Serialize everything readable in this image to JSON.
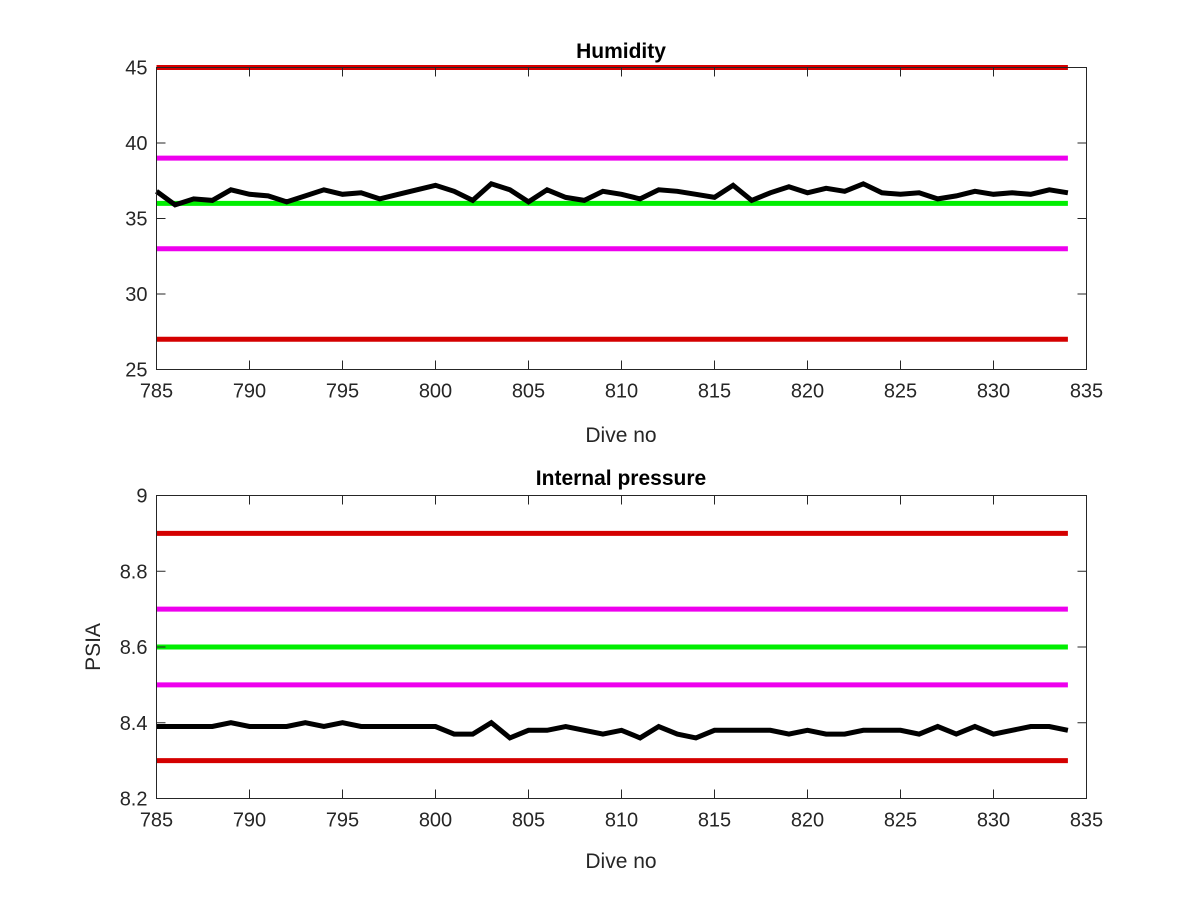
{
  "chart_data": [
    {
      "type": "line",
      "title": "Humidity",
      "xlabel": "Dive no",
      "ylabel": "",
      "xlim": [
        785,
        835
      ],
      "ylim": [
        25,
        45
      ],
      "xticks": [
        785,
        790,
        795,
        800,
        805,
        810,
        815,
        820,
        825,
        830,
        835
      ],
      "xtick_labels": [
        "785",
        "790",
        "795",
        "800",
        "805",
        "810",
        "815",
        "820",
        "825",
        "830",
        "835"
      ],
      "yticks": [
        25,
        30,
        35,
        40,
        45
      ],
      "ytick_labels": [
        "25",
        "30",
        "35",
        "40",
        "45"
      ],
      "grid": false,
      "reference_lines": [
        {
          "y": 45,
          "color": "#d40000"
        },
        {
          "y": 39,
          "color": "#ee00ee"
        },
        {
          "y": 36,
          "color": "#00ee00"
        },
        {
          "y": 33,
          "color": "#ee00ee"
        },
        {
          "y": 27,
          "color": "#d40000"
        }
      ],
      "series": [
        {
          "color": "#000000",
          "x": [
            785,
            786,
            787,
            788,
            789,
            790,
            791,
            792,
            793,
            794,
            795,
            796,
            797,
            798,
            799,
            800,
            801,
            802,
            803,
            804,
            805,
            806,
            807,
            808,
            809,
            810,
            811,
            812,
            813,
            814,
            815,
            816,
            817,
            818,
            819,
            820,
            821,
            822,
            823,
            824,
            825,
            826,
            827,
            828,
            829,
            830,
            831,
            832,
            833,
            834
          ],
          "values": [
            36.8,
            35.9,
            36.3,
            36.2,
            36.9,
            36.6,
            36.5,
            36.1,
            36.5,
            36.9,
            36.6,
            36.7,
            36.3,
            36.6,
            36.9,
            37.2,
            36.8,
            36.2,
            37.3,
            36.9,
            36.1,
            36.9,
            36.4,
            36.2,
            36.8,
            36.6,
            36.3,
            36.9,
            36.8,
            36.6,
            36.4,
            37.2,
            36.2,
            36.7,
            37.1,
            36.7,
            37.0,
            36.8,
            37.3,
            36.7,
            36.6,
            36.7,
            36.3,
            36.5,
            36.8,
            36.6,
            36.7,
            36.6,
            36.9,
            36.7
          ]
        }
      ]
    },
    {
      "type": "line",
      "title": "Internal pressure",
      "xlabel": "Dive no",
      "ylabel": "PSIA",
      "xlim": [
        785,
        835
      ],
      "ylim": [
        8.2,
        9
      ],
      "xticks": [
        785,
        790,
        795,
        800,
        805,
        810,
        815,
        820,
        825,
        830,
        835
      ],
      "xtick_labels": [
        "785",
        "790",
        "795",
        "800",
        "805",
        "810",
        "815",
        "820",
        "825",
        "830",
        "835"
      ],
      "yticks": [
        8.2,
        8.4,
        8.6,
        8.8,
        9
      ],
      "ytick_labels": [
        "8.2",
        "8.4",
        "8.6",
        "8.8",
        "9"
      ],
      "grid": false,
      "reference_lines": [
        {
          "y": 8.9,
          "color": "#d40000"
        },
        {
          "y": 8.7,
          "color": "#ee00ee"
        },
        {
          "y": 8.6,
          "color": "#00ee00"
        },
        {
          "y": 8.5,
          "color": "#ee00ee"
        },
        {
          "y": 8.3,
          "color": "#d40000"
        }
      ],
      "series": [
        {
          "color": "#000000",
          "x": [
            785,
            786,
            787,
            788,
            789,
            790,
            791,
            792,
            793,
            794,
            795,
            796,
            797,
            798,
            799,
            800,
            801,
            802,
            803,
            804,
            805,
            806,
            807,
            808,
            809,
            810,
            811,
            812,
            813,
            814,
            815,
            816,
            817,
            818,
            819,
            820,
            821,
            822,
            823,
            824,
            825,
            826,
            827,
            828,
            829,
            830,
            831,
            832,
            833,
            834
          ],
          "values": [
            8.39,
            8.39,
            8.39,
            8.39,
            8.4,
            8.39,
            8.39,
            8.39,
            8.4,
            8.39,
            8.4,
            8.39,
            8.39,
            8.39,
            8.39,
            8.39,
            8.37,
            8.37,
            8.4,
            8.36,
            8.38,
            8.38,
            8.39,
            8.38,
            8.37,
            8.38,
            8.36,
            8.39,
            8.37,
            8.36,
            8.38,
            8.38,
            8.38,
            8.38,
            8.37,
            8.38,
            8.37,
            8.37,
            8.38,
            8.38,
            8.38,
            8.37,
            8.39,
            8.37,
            8.39,
            8.37,
            8.38,
            8.39,
            8.39,
            8.38
          ]
        }
      ]
    }
  ]
}
